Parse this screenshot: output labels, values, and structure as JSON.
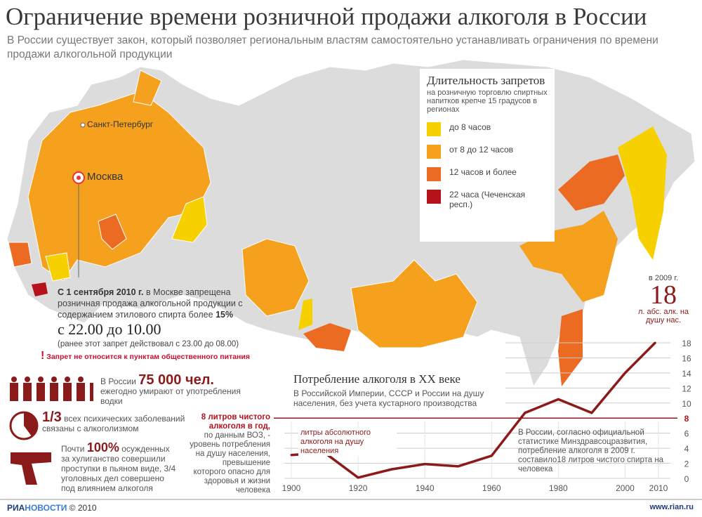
{
  "header": {
    "title": "Ограничение времени розничной продажи алкоголя в России",
    "subtitle": "В России существует закон, который позволяет региональным властям самостоятельно устанавливать ограничения по времени продажи алкогольной продукции"
  },
  "map": {
    "cities": [
      "Санкт-Петербург",
      "Москва"
    ]
  },
  "legend": {
    "title": "Длительность запретов",
    "subtitle": "на розничную торговлю спиртных напитков крепче 15 градусов в регионах",
    "items": [
      {
        "label": "до 8 часов",
        "color": "#f7d000"
      },
      {
        "label": "от 8 до 12 часов",
        "color": "#f5a11e"
      },
      {
        "label": "12 часов и более",
        "color": "#ec6b23"
      },
      {
        "label": "22 часа (Чеченская респ.)",
        "color": "#b5121b"
      }
    ]
  },
  "moscow": {
    "lead": "С 1 сентября 2010 г.",
    "text1": "в Москве запрещена розничная продажа алкогольной продукции с содержанием этилового спирта более",
    "pct": "15%",
    "time": "с 22.00 до 10.00",
    "previous": "(ранее этот запрет действовал с 23.00 до 08.00)",
    "warning": "Запрет не относится к пунктам общественного питания"
  },
  "stats": {
    "deaths_pre": "В России",
    "deaths_num": "75 000 чел.",
    "deaths_post": "ежегодно умирают от употребления водки",
    "mental_num": "1/3",
    "mental_text": "всех психических заболеваний связаны с алкоголизмом",
    "crime_pre": "Почти",
    "crime_num": "100%",
    "crime_text": "осужденных за хулиганство совершили проступки в пьяном виде, 3/4 уголовных дел совершено под влиянием алкоголя",
    "who_bold": "8 литров чистого алкоголя в год,",
    "who_text": "по данным ВОЗ, - уровень потребления на душу населения, превышение которого опасно для здоровья и жизни человека"
  },
  "chart_data": {
    "type": "line",
    "title": "Потребление алкоголя в XX веке",
    "subtitle": "В Российской Империи, СССР и России на душу населения, без учета кустарного производства",
    "series_label": "литры абсолютного алкоголя на душу населения",
    "x": [
      1900,
      1910,
      1920,
      1930,
      1940,
      1950,
      1960,
      1970,
      1980,
      1990,
      2000,
      2009
    ],
    "values": [
      3.1,
      3.4,
      0.1,
      1.2,
      1.9,
      1.6,
      3.0,
      8.7,
      10.5,
      8.7,
      14,
      18
    ],
    "xticks": [
      "1900",
      "1920",
      "1940",
      "1960",
      "1980",
      "2000",
      "2010"
    ],
    "yticks": [
      "0",
      "2",
      "4",
      "6",
      "8",
      "10",
      "12",
      "14",
      "16",
      "18"
    ],
    "ylim": [
      0,
      18
    ],
    "xlim": [
      1900,
      2010
    ],
    "threshold": 8,
    "note": "В России, согласно официальной статистике Минздравсоцразвития, потребление алкоголя в 2009 г. составило18 литров чистого спирта на человека",
    "highlight": {
      "year_label": "в 2009 г.",
      "value": "18",
      "unit": "л. абс. алк. на душу нас."
    },
    "line_color": "#8b1a1a"
  },
  "footer": {
    "logo_a": "РИА",
    "logo_b": "НОВОСТИ",
    "copyright": "© 2010",
    "url": "www.rian.ru"
  }
}
